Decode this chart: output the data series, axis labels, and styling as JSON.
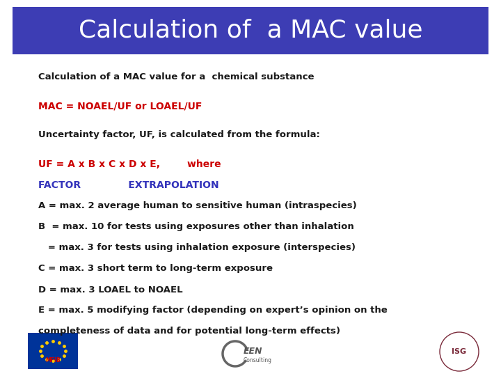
{
  "title": "Calculation of  a MAC value",
  "title_bg_color": "#3d3db4",
  "title_text_color": "#ffffff",
  "bg_color": "#ffffff",
  "line1": "Calculation of a MAC value for a  chemical substance",
  "line1_color": "#1a1a1a",
  "line2": "MAC = NOAEL/UF or LOAEL/UF",
  "line2_color": "#cc0000",
  "line3": "Uncertainty factor, UF, is calculated from the formula:",
  "line3_color": "#1a1a1a",
  "line4a": "UF = A x B x C x D x E,        where",
  "line4a_color": "#cc0000",
  "line4b": "FACTOR              EXTRAPOLATION",
  "line4b_color": "#3333bb",
  "line5": "A = max. 2 average human to sensitive human (intraspecies)",
  "line5_color": "#1a1a1a",
  "line6": "B  = max. 10 for tests using exposures other than inhalation",
  "line6_color": "#1a1a1a",
  "line7": "   = max. 3 for tests using inhalation exposure (interspecies)",
  "line7_color": "#1a1a1a",
  "line8": "C = max. 3 short term to long-term exposure",
  "line8_color": "#1a1a1a",
  "line9": "D = max. 3 LOAEL to NOAEL",
  "line9_color": "#1a1a1a",
  "line10a": "E = max. 5 modifying factor (depending on expert’s opinion on the",
  "line10b": "completeness of data and for potential long-term effects)",
  "line10_color": "#1a1a1a",
  "title_fontsize": 26,
  "body_fontsize": 9.5,
  "formula_fontsize": 10.0
}
